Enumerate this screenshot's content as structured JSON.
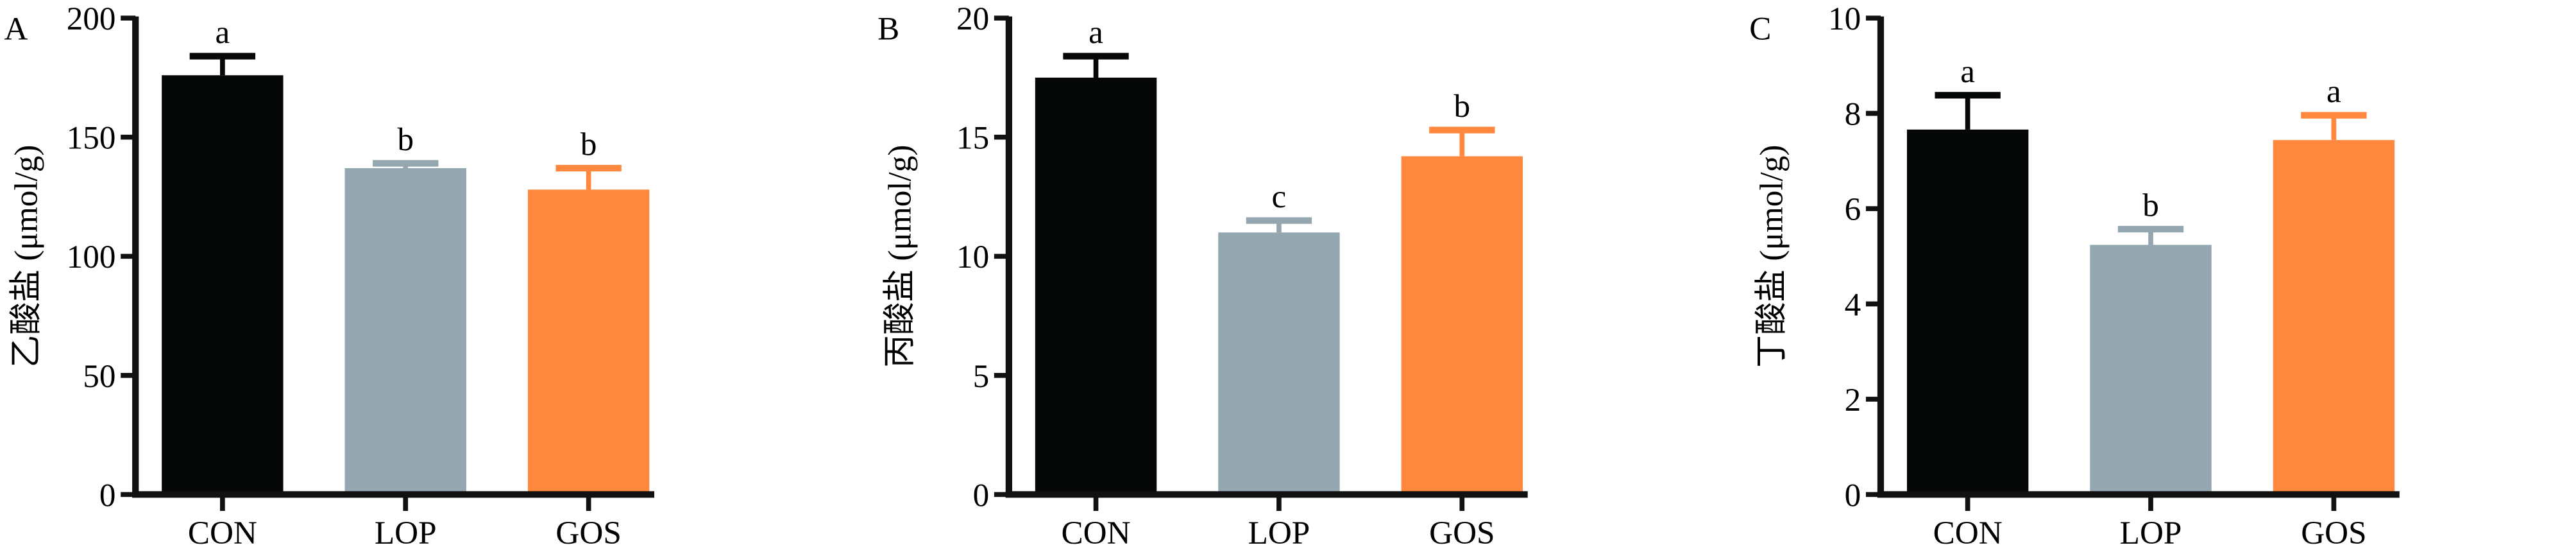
{
  "chart_data": [
    {
      "type": "bar",
      "panel_label": "A",
      "ylabel": "乙酸盐 (μmol/g)",
      "categories": [
        "CON",
        "LOP",
        "GOS"
      ],
      "values": [
        176,
        137,
        128
      ],
      "errors": [
        8,
        2,
        9
      ],
      "significance": [
        "a",
        "b",
        "b"
      ],
      "ylim": [
        0,
        200
      ],
      "yticks": [
        0,
        50,
        100,
        150,
        200
      ]
    },
    {
      "type": "bar",
      "panel_label": "B",
      "ylabel": "丙酸盐 (μmol/g)",
      "categories": [
        "CON",
        "LOP",
        "GOS"
      ],
      "values": [
        17.5,
        11.0,
        14.2
      ],
      "errors": [
        0.9,
        0.5,
        1.1
      ],
      "significance": [
        "a",
        "c",
        "b"
      ],
      "ylim": [
        0,
        20
      ],
      "yticks": [
        0,
        5,
        10,
        15,
        20
      ]
    },
    {
      "type": "bar",
      "panel_label": "C",
      "ylabel": "丁酸盐 (μmol/g)",
      "categories": [
        "CON",
        "LOP",
        "GOS"
      ],
      "values": [
        7.66,
        5.24,
        7.44
      ],
      "errors": [
        0.72,
        0.33,
        0.52
      ],
      "significance": [
        "a",
        "b",
        "a"
      ],
      "ylim": [
        0,
        10
      ],
      "yticks": [
        0,
        2,
        4,
        6,
        8,
        10
      ]
    }
  ],
  "colors": {
    "CON": "#060807",
    "LOP": "#94a6b0",
    "GOS": "#ff883e",
    "axis": "#111111"
  }
}
